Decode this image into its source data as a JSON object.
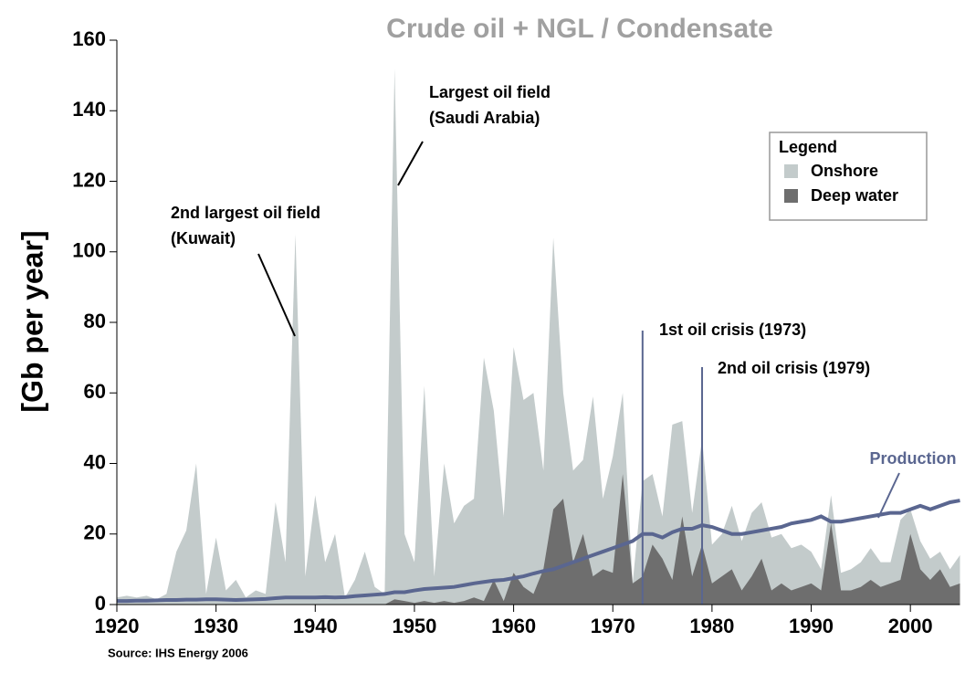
{
  "chart_data": {
    "type": "area",
    "title": "Crude oil + NGL / Condensate",
    "y_label": "[Gb per year]",
    "source": "Source: IHS Energy 2006",
    "legend_title": "Legend",
    "legend": "upper right",
    "x": [
      1920,
      1921,
      1922,
      1923,
      1924,
      1925,
      1926,
      1927,
      1928,
      1929,
      1930,
      1931,
      1932,
      1933,
      1934,
      1935,
      1936,
      1937,
      1938,
      1939,
      1940,
      1941,
      1942,
      1943,
      1944,
      1945,
      1946,
      1947,
      1948,
      1949,
      1950,
      1951,
      1952,
      1953,
      1954,
      1955,
      1956,
      1957,
      1958,
      1959,
      1960,
      1961,
      1962,
      1963,
      1964,
      1965,
      1966,
      1967,
      1968,
      1969,
      1970,
      1971,
      1972,
      1973,
      1974,
      1975,
      1976,
      1977,
      1978,
      1979,
      1980,
      1981,
      1982,
      1983,
      1984,
      1985,
      1986,
      1987,
      1988,
      1989,
      1990,
      1991,
      1992,
      1993,
      1994,
      1995,
      1996,
      1997,
      1998,
      1999,
      2000,
      2001,
      2002,
      2003,
      2004,
      2005
    ],
    "series": [
      {
        "name": "Onshore",
        "color": "#c3cbcb",
        "values": [
          2,
          2.5,
          2,
          2.5,
          1.5,
          3,
          15,
          21,
          40,
          3,
          19,
          4,
          7,
          2,
          4,
          3,
          29,
          12,
          105,
          8,
          31,
          12,
          20,
          2,
          7,
          15,
          5,
          3,
          152,
          20,
          12,
          62,
          8,
          40,
          23,
          28,
          30,
          70,
          55,
          25,
          73,
          58,
          60,
          38,
          104,
          60,
          38,
          41,
          59,
          30,
          42,
          60,
          6,
          35,
          37,
          25,
          51,
          52,
          26,
          47,
          17,
          20,
          28,
          18,
          26,
          29,
          19,
          20,
          16,
          17,
          15,
          10,
          31,
          9,
          10,
          12,
          16,
          12,
          12,
          24,
          27,
          18,
          13,
          15,
          10,
          14
        ]
      },
      {
        "name": "Deep water",
        "color": "#6e6e6e",
        "values": [
          0,
          0,
          0,
          0,
          0,
          0,
          0,
          0,
          0,
          0,
          0,
          0,
          0,
          0,
          0,
          0,
          0,
          0,
          0,
          0,
          0,
          0,
          0,
          0,
          0,
          0,
          0,
          0,
          1.5,
          1,
          0.5,
          1,
          0.5,
          1,
          0.5,
          1,
          2,
          1,
          7,
          1,
          9,
          5,
          3,
          10,
          27,
          30,
          12,
          20,
          8,
          10,
          9,
          37,
          6,
          8,
          17,
          13,
          7,
          25,
          8,
          17,
          6,
          8,
          10,
          4,
          8,
          13,
          4,
          6,
          4,
          5,
          6,
          4,
          23,
          4,
          4,
          5,
          7,
          5,
          6,
          7,
          20,
          10,
          7,
          10,
          5,
          6
        ]
      },
      {
        "name": "Production",
        "type": "line",
        "color": "#5a6690",
        "values": [
          1,
          1,
          1.1,
          1.1,
          1.2,
          1.3,
          1.3,
          1.4,
          1.4,
          1.5,
          1.5,
          1.4,
          1.3,
          1.4,
          1.5,
          1.6,
          1.8,
          2,
          2,
          2,
          2,
          2.1,
          2,
          2.1,
          2.4,
          2.6,
          2.8,
          3,
          3.5,
          3.5,
          4,
          4.4,
          4.6,
          4.8,
          5,
          5.5,
          6,
          6.4,
          6.8,
          7,
          7.5,
          8,
          8.8,
          9.5,
          10,
          11,
          12,
          13,
          14,
          15,
          16,
          17,
          18,
          20,
          20,
          19,
          20.5,
          21.5,
          21.5,
          22.5,
          22,
          21,
          20,
          20,
          20.5,
          21,
          21.5,
          22,
          23,
          23.5,
          24,
          25,
          23.5,
          23.5,
          24,
          24.5,
          25,
          25.5,
          26,
          26,
          27,
          28,
          27,
          28,
          29,
          29.5
        ]
      }
    ],
    "events": [
      {
        "x": 1973,
        "label": "1st oil crisis (1973)"
      },
      {
        "x": 1979,
        "label": "2nd oil crisis (1979)"
      }
    ],
    "annotations": [
      [
        "Largest oil field",
        "(Saudi Arabia)"
      ],
      [
        "2nd largest oil field",
        "(Kuwait)"
      ],
      [
        "Production"
      ]
    ],
    "xlim": [
      1920,
      2005
    ],
    "xticks": [
      1920,
      1930,
      1940,
      1950,
      1960,
      1970,
      1980,
      1990,
      2000
    ],
    "ylim": [
      0,
      160
    ],
    "yticks": [
      0,
      20,
      40,
      60,
      80,
      100,
      120,
      140,
      160
    ]
  }
}
